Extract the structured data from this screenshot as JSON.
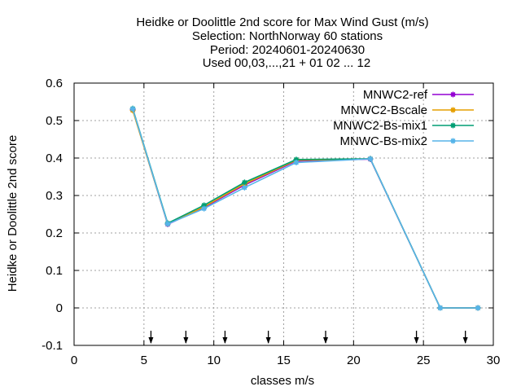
{
  "chart_data": {
    "type": "line",
    "title": [
      "Heidke or Doolittle 2nd score  for Max Wind Gust (m/s)",
      "Selection: NorthNorway      60 stations",
      "Period: 20240601-20240630",
      "Used 00,03,...,21 + 01 02 ... 12"
    ],
    "xlabel": "classes m/s",
    "ylabel": "Heidke or Doolittle 2nd score",
    "xlim": [
      0,
      30
    ],
    "ylim": [
      -0.1,
      0.6
    ],
    "xticks": [
      0,
      5,
      10,
      15,
      20,
      25,
      30
    ],
    "yticks": [
      -0.1,
      0,
      0.1,
      0.2,
      0.3,
      0.4,
      0.5,
      0.6
    ],
    "xtick_labels": [
      "0",
      "5",
      "10",
      "15",
      "20",
      "25",
      "30"
    ],
    "ytick_labels": [
      "-0.1",
      "0",
      "0.1",
      "0.2",
      "0.3",
      "0.4",
      "0.5",
      "0.6"
    ],
    "grid": true,
    "legend_position": "top-right",
    "threshold_arrows_x": [
      5.5,
      8.0,
      10.8,
      13.9,
      18.0,
      24.5,
      28.0
    ],
    "x": [
      4.2,
      6.7,
      9.3,
      12.2,
      15.9,
      21.2,
      26.2,
      28.9
    ],
    "series": [
      {
        "name": "MNWC2-ref",
        "color": "#9400d3",
        "values": [
          0.529,
          0.223,
          0.268,
          0.328,
          0.392,
          0.397,
          0.0,
          0.0
        ]
      },
      {
        "name": "MNWC2-Bscale",
        "color": "#e69f00",
        "values": [
          0.527,
          0.224,
          0.27,
          0.331,
          0.394,
          0.398,
          0.0,
          0.0
        ]
      },
      {
        "name": "MNWC2-Bs-mix1",
        "color": "#009e73",
        "values": [
          0.532,
          0.226,
          0.274,
          0.335,
          0.396,
          0.398,
          0.0,
          0.0
        ]
      },
      {
        "name": "MNWC-Bs-mix2",
        "color": "#56b4e9",
        "values": [
          0.531,
          0.224,
          0.265,
          0.321,
          0.388,
          0.398,
          0.0,
          0.0
        ]
      }
    ]
  }
}
